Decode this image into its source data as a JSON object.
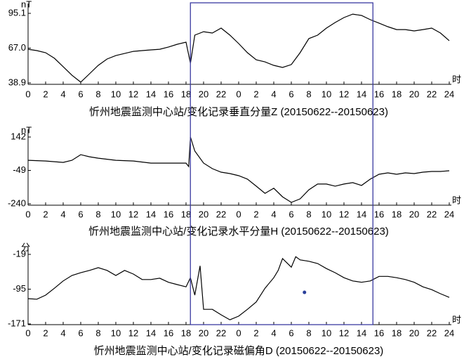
{
  "highlight_x": [
    18.5,
    39.3
  ],
  "highlight_color": "#3a3aa0",
  "chart_data": [
    {
      "type": "line",
      "title": "忻州地震监测中心站/变化记录垂直分量Z (20150622--20150623)",
      "ylabel": "nT",
      "xlabel": "时",
      "color": "#000000",
      "xlim": [
        0,
        48
      ],
      "xticks": [
        0,
        2,
        4,
        6,
        8,
        10,
        12,
        14,
        16,
        18,
        20,
        22,
        {
          "value": 24,
          "label": "0"
        },
        {
          "value": 26,
          "label": "2"
        },
        {
          "value": 28,
          "label": "4"
        },
        {
          "value": 30,
          "label": "6"
        },
        {
          "value": 32,
          "label": "8"
        },
        {
          "value": 34,
          "label": "10"
        },
        {
          "value": 36,
          "label": "12"
        },
        {
          "value": 38,
          "label": "14"
        },
        {
          "value": 40,
          "label": "16"
        },
        {
          "value": 42,
          "label": "18"
        },
        {
          "value": 44,
          "label": "20"
        },
        {
          "value": 46,
          "label": "22"
        },
        {
          "value": 48,
          "label": "24"
        }
      ],
      "ylim": [
        38.9,
        95.1
      ],
      "yticks": [
        38.9,
        {
          "value": 67.0,
          "label": "67.0"
        },
        95.1
      ],
      "x": [
        0,
        1,
        2,
        3,
        4,
        5,
        6,
        7,
        8,
        9,
        10,
        11,
        12,
        13,
        14,
        15,
        16,
        17,
        18,
        18.5,
        19,
        20,
        21,
        22,
        23,
        24,
        25,
        26,
        27,
        28,
        29,
        30,
        31,
        32,
        33,
        34,
        35,
        36,
        37,
        38,
        39,
        40,
        41,
        42,
        43,
        44,
        45,
        46,
        47,
        48
      ],
      "values": [
        66.1,
        65.0,
        63.3,
        58.8,
        52.0,
        45.1,
        39.5,
        46.3,
        53.1,
        58.2,
        61.0,
        62.7,
        64.4,
        65.0,
        65.6,
        66.1,
        67.9,
        70.1,
        71.8,
        54.8,
        77.5,
        80.3,
        79.2,
        83.2,
        77.5,
        70.7,
        63.3,
        57.6,
        55.9,
        53.1,
        51.4,
        53.7,
        63.3,
        74.7,
        77.5,
        83.2,
        87.7,
        91.7,
        94.5,
        93.4,
        90.0,
        87.2,
        84.3,
        82.0,
        82.0,
        80.9,
        82.0,
        83.2,
        79.2,
        73.0
      ]
    },
    {
      "type": "line",
      "title": "忻州地震监测中心站/变化记录水平分量H (20150622--20150623)",
      "ylabel": "nT",
      "xlabel": "时",
      "color": "#000000",
      "xlim": [
        0,
        48
      ],
      "xticks": [
        0,
        2,
        4,
        6,
        8,
        10,
        12,
        14,
        16,
        18,
        20,
        22,
        {
          "value": 24,
          "label": "0"
        },
        {
          "value": 26,
          "label": "2"
        },
        {
          "value": 28,
          "label": "4"
        },
        {
          "value": 30,
          "label": "6"
        },
        {
          "value": 32,
          "label": "8"
        },
        {
          "value": 34,
          "label": "10"
        },
        {
          "value": 36,
          "label": "12"
        },
        {
          "value": 38,
          "label": "14"
        },
        {
          "value": 40,
          "label": "16"
        },
        {
          "value": 42,
          "label": "18"
        },
        {
          "value": 44,
          "label": "20"
        },
        {
          "value": 46,
          "label": "22"
        },
        {
          "value": 48,
          "label": "24"
        }
      ],
      "ylim": [
        -240,
        142
      ],
      "yticks": [
        -240,
        -49,
        142
      ],
      "x": [
        0,
        2,
        4,
        5,
        6,
        7,
        8,
        10,
        12,
        14,
        16,
        18,
        18.3,
        18.5,
        19,
        20,
        21,
        22,
        23,
        24,
        25,
        26,
        27,
        28,
        29,
        30,
        31,
        32,
        33,
        34,
        35,
        36,
        37,
        38,
        39,
        40,
        41,
        42,
        43,
        44,
        45,
        46,
        47,
        48
      ],
      "values": [
        9,
        5,
        -3,
        9,
        41,
        29,
        21,
        9,
        5,
        -7,
        -7,
        -7,
        -27,
        142,
        62,
        -7,
        -39,
        -59,
        -67,
        -79,
        -99,
        -139,
        -180,
        -151,
        -200,
        -232,
        -212,
        -160,
        -127,
        -127,
        -139,
        -127,
        -119,
        -135,
        -99,
        -71,
        -63,
        -71,
        -63,
        -67,
        -59,
        -55,
        -55,
        -51
      ]
    },
    {
      "type": "line",
      "title": "忻州地震监测中心站/变化记录磁偏角D (20150622--20150623)",
      "ylabel": "分",
      "xlabel": "时",
      "color": "#000000",
      "xlim": [
        0,
        48
      ],
      "xticks": [
        0,
        2,
        4,
        6,
        8,
        10,
        12,
        14,
        16,
        18,
        20,
        22,
        {
          "value": 24,
          "label": "0"
        },
        {
          "value": 26,
          "label": "2"
        },
        {
          "value": 28,
          "label": "4"
        },
        {
          "value": 30,
          "label": "6"
        },
        {
          "value": 32,
          "label": "8"
        },
        {
          "value": 34,
          "label": "10"
        },
        {
          "value": 36,
          "label": "12"
        },
        {
          "value": 38,
          "label": "14"
        },
        {
          "value": 40,
          "label": "16"
        },
        {
          "value": 42,
          "label": "18"
        },
        {
          "value": 44,
          "label": "20"
        },
        {
          "value": 46,
          "label": "22"
        },
        {
          "value": 48,
          "label": "24"
        }
      ],
      "ylim": [
        -171,
        -19
      ],
      "yticks": [
        -171,
        -95,
        -19
      ],
      "x": [
        0,
        1,
        2,
        3,
        4,
        5,
        6,
        7,
        8,
        9,
        10,
        11,
        12,
        13,
        14,
        15,
        16,
        17,
        18,
        18.5,
        19,
        19.6,
        20,
        21,
        22,
        23,
        24,
        25,
        26,
        27,
        28,
        28.5,
        29,
        30,
        30.5,
        31,
        32,
        33,
        34,
        35,
        36,
        37,
        38,
        39,
        40,
        41,
        42,
        43,
        44,
        45,
        46,
        47,
        48
      ],
      "values": [
        -115.7,
        -117,
        -108,
        -93,
        -77,
        -65,
        -59,
        -54,
        -48,
        -54,
        -65,
        -54,
        -62,
        -74,
        -74,
        -71,
        -80,
        -85,
        -90,
        -70,
        -108,
        -44,
        -139,
        -139,
        -151,
        -162,
        -154,
        -139,
        -123,
        -93,
        -70,
        -54,
        -28,
        -47,
        -24,
        -31,
        -34,
        -39,
        -50,
        -59,
        -70,
        -77,
        -80,
        -77,
        -67,
        -67,
        -70,
        -74,
        -80,
        -90,
        -96,
        -105,
        -113
      ],
      "points": {
        "x": [
          31.5
        ],
        "y": [
          -102
        ],
        "color": "#2a3f9a"
      }
    }
  ]
}
